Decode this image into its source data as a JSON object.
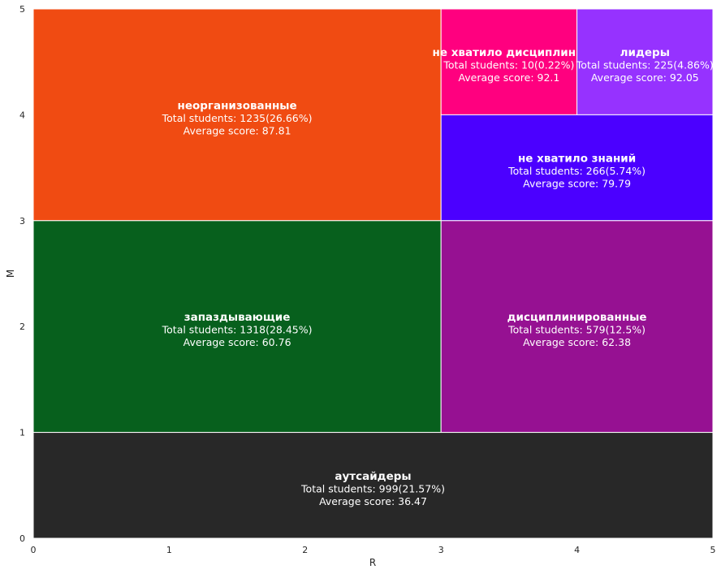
{
  "chart_data": {
    "type": "treemap",
    "xlabel": "R",
    "ylabel": "M",
    "xlim": [
      0,
      5
    ],
    "ylim": [
      0,
      5
    ],
    "x_ticks": [
      "0",
      "1",
      "2",
      "3",
      "4",
      "5"
    ],
    "y_ticks": [
      "0",
      "1",
      "2",
      "3",
      "4",
      "5"
    ],
    "grid": false,
    "segments": [
      {
        "name": "неорганизованные",
        "r_range": [
          0,
          3
        ],
        "m_range": [
          3,
          5
        ],
        "color": "#f04b12",
        "students_text": "Total students: 1235(26.66%)",
        "score_text": "Average score: 87.81",
        "students": 1235,
        "share_pct": 26.66,
        "avg_score": 87.81
      },
      {
        "name": "не хватило дисциплины",
        "r_range": [
          3,
          4
        ],
        "m_range": [
          4,
          5
        ],
        "color": "#ff007f",
        "students_text": "Total students: 10(0.22%)",
        "score_text": "Average score: 92.1",
        "students": 10,
        "share_pct": 0.22,
        "avg_score": 92.1
      },
      {
        "name": "лидеры",
        "r_range": [
          4,
          5
        ],
        "m_range": [
          4,
          5
        ],
        "color": "#9632ff",
        "students_text": "Total students: 225(4.86%)",
        "score_text": "Average score: 92.05",
        "students": 225,
        "share_pct": 4.86,
        "avg_score": 92.05
      },
      {
        "name": "не хватило знаний",
        "r_range": [
          3,
          5
        ],
        "m_range": [
          3,
          4
        ],
        "color": "#4b00ff",
        "students_text": "Total students: 266(5.74%)",
        "score_text": "Average score: 79.79",
        "students": 266,
        "share_pct": 5.74,
        "avg_score": 79.79
      },
      {
        "name": "запаздывающие",
        "r_range": [
          0,
          3
        ],
        "m_range": [
          1,
          3
        ],
        "color": "#07601d",
        "students_text": "Total students: 1318(28.45%)",
        "score_text": "Average score: 60.76",
        "students": 1318,
        "share_pct": 28.45,
        "avg_score": 60.76
      },
      {
        "name": "дисциплинированные",
        "r_range": [
          3,
          5
        ],
        "m_range": [
          1,
          3
        ],
        "color": "#961192",
        "students_text": "Total students: 579(12.5%)",
        "score_text": "Average score: 62.38",
        "students": 579,
        "share_pct": 12.5,
        "avg_score": 62.38
      },
      {
        "name": "аутсайдеры",
        "r_range": [
          0,
          5
        ],
        "m_range": [
          0,
          1
        ],
        "color": "#282828",
        "students_text": "Total students: 999(21.57%)",
        "score_text": "Average score: 36.47",
        "students": 999,
        "share_pct": 21.57,
        "avg_score": 36.47
      }
    ]
  }
}
